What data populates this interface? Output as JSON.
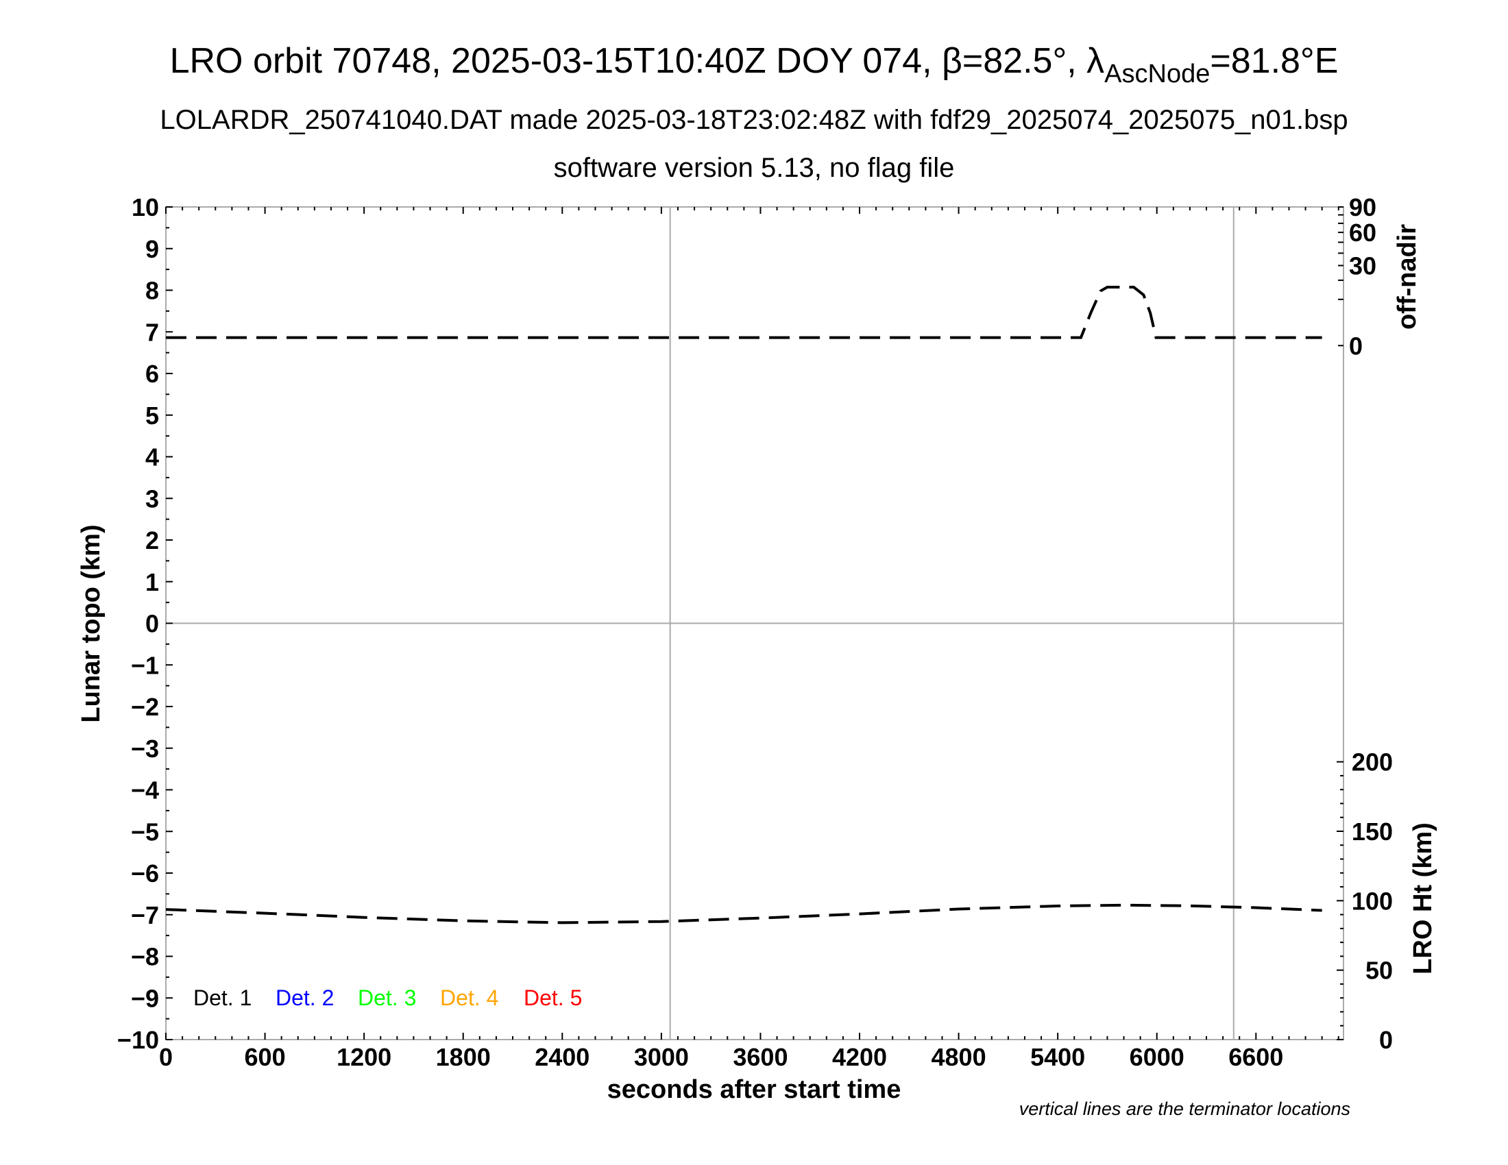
{
  "header": {
    "title_main": "LRO orbit 70748, 2025-03-15T10:40Z DOY 074, β=82.5°, λ",
    "title_sub": "AscNode",
    "title_end": "=81.8°E",
    "subtitle": "LOLARDR_250741040.DAT made 2025-03-18T23:02:48Z with fdf29_2025074_2025075_n01.bsp",
    "subtitle2": "software version 5.13, no flag file"
  },
  "chart_data": {
    "type": "line",
    "xlabel": "seconds after start time",
    "ylabel": "Lunar topo (km)",
    "xlim": [
      0,
      7130
    ],
    "ylim": [
      -10,
      10
    ],
    "x_ticks": [
      "0",
      "600",
      "1200",
      "1800",
      "2400",
      "3000",
      "3600",
      "4200",
      "4800",
      "5400",
      "6000",
      "6600"
    ],
    "y_ticks": [
      "10",
      "9",
      "8",
      "7",
      "6",
      "5",
      "4",
      "3",
      "2",
      "1",
      "0",
      "−1",
      "−2",
      "−3",
      "−4",
      "−5",
      "−6",
      "−7",
      "−8",
      "−9",
      "−10"
    ],
    "right_top_axis": {
      "label": "off-nadir",
      "ticks": [
        "90",
        "60",
        "30",
        "0"
      ],
      "scale": "sqrt",
      "range": [
        0,
        90
      ]
    },
    "right_bottom_axis": {
      "label": "LRO Ht (km)",
      "ticks": [
        "200",
        "150",
        "100",
        "50",
        "0"
      ],
      "range": [
        0,
        200
      ]
    },
    "terminator_lines_x": [
      3053,
      6465
    ],
    "grid": "horizontal line at 0 plus terminator verticals",
    "legend": {
      "placement": "bottom-left",
      "entries": [
        {
          "label": "Det. 1",
          "color": "#000000"
        },
        {
          "label": "Det. 2",
          "color": "#0000ff"
        },
        {
          "label": "Det. 3",
          "color": "#00ff00"
        },
        {
          "label": "Det. 4",
          "color": "#ffa500"
        },
        {
          "label": "Det. 5",
          "color": "#ff0000"
        }
      ]
    },
    "series": [
      {
        "axis": "off-nadir",
        "style": "dashed",
        "x": [
          0,
          1000,
          2000,
          3000,
          4000,
          5000,
          5540,
          5600,
          5660,
          5700,
          5860,
          5920,
          5960,
          5995,
          6200,
          7000
        ],
        "y": [
          0.3,
          0.3,
          0.3,
          0.3,
          0.3,
          0.3,
          0.3,
          5,
          14,
          16,
          16,
          12,
          5,
          0.3,
          0.3,
          0.3
        ]
      },
      {
        "axis": "LRO Ht (km)",
        "style": "dashed",
        "x": [
          0,
          600,
          1200,
          1800,
          2400,
          3000,
          3600,
          4200,
          4800,
          5400,
          5800,
          6200,
          6600,
          7000
        ],
        "y": [
          93.7,
          91,
          88,
          85.5,
          84.2,
          85,
          87.5,
          90.5,
          94,
          96.2,
          96.8,
          96.3,
          95,
          93
        ]
      }
    ],
    "note": "vertical lines are the terminator locations"
  }
}
